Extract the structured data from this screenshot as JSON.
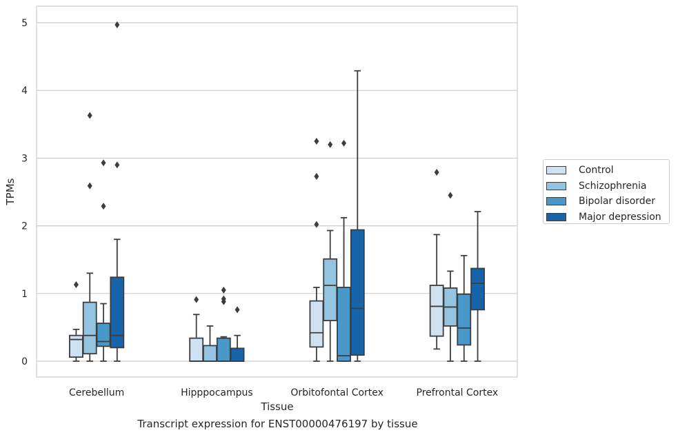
{
  "caption": "Transcript expression for ENST00000476197 by tissue",
  "chart_data": {
    "type": "boxplot",
    "xlabel": "Tissue",
    "ylabel": "TPMs",
    "ylim": [
      -0.25,
      5.25
    ],
    "yticks": [
      0,
      1,
      2,
      3,
      4,
      5
    ],
    "grid": "horizontal",
    "legend_position": "right",
    "categories": [
      "Cerebellum",
      "Hipppocampus",
      "Orbitofontal Cortex",
      "Prefrontal Cortex"
    ],
    "series": [
      {
        "name": "Control",
        "color": "#d0e1f2",
        "boxes": [
          {
            "whislo": 0.0,
            "q1": 0.06,
            "med": 0.32,
            "q3": 0.38,
            "whishi": 0.47,
            "fliers": [
              1.13
            ]
          },
          {
            "whislo": 0.0,
            "q1": 0.0,
            "med": 0.0,
            "q3": 0.34,
            "whishi": 0.69,
            "fliers": [
              0.91
            ]
          },
          {
            "whislo": 0.0,
            "q1": 0.21,
            "med": 0.42,
            "q3": 0.89,
            "whishi": 1.09,
            "fliers": [
              2.02,
              2.73,
              3.25
            ]
          },
          {
            "whislo": 0.18,
            "q1": 0.37,
            "med": 0.81,
            "q3": 1.12,
            "whishi": 1.87,
            "fliers": [
              2.79
            ]
          }
        ]
      },
      {
        "name": "Schizophrenia",
        "color": "#94c4df",
        "boxes": [
          {
            "whislo": 0.0,
            "q1": 0.11,
            "med": 0.38,
            "q3": 0.87,
            "whishi": 1.3,
            "fliers": [
              2.59,
              3.63
            ]
          },
          {
            "whislo": 0.0,
            "q1": 0.0,
            "med": 0.0,
            "q3": 0.23,
            "whishi": 0.52,
            "fliers": []
          },
          {
            "whislo": 0.0,
            "q1": 0.6,
            "med": 1.12,
            "q3": 1.51,
            "whishi": 1.93,
            "fliers": [
              3.2
            ]
          },
          {
            "whislo": 0.0,
            "q1": 0.52,
            "med": 0.8,
            "q3": 1.08,
            "whishi": 1.33,
            "fliers": [
              2.45
            ]
          }
        ]
      },
      {
        "name": "Bipolar disorder",
        "color": "#4a98c9",
        "boxes": [
          {
            "whislo": 0.0,
            "q1": 0.22,
            "med": 0.29,
            "q3": 0.56,
            "whishi": 0.85,
            "fliers": [
              2.29,
              2.93
            ]
          },
          {
            "whislo": 0.0,
            "q1": 0.0,
            "med": 0.0,
            "q3": 0.34,
            "whishi": 0.36,
            "fliers": [
              0.88,
              0.92,
              1.05
            ]
          },
          {
            "whislo": 0.0,
            "q1": 0.0,
            "med": 0.08,
            "q3": 1.09,
            "whishi": 2.12,
            "fliers": [
              3.22
            ]
          },
          {
            "whislo": 0.0,
            "q1": 0.24,
            "med": 0.49,
            "q3": 0.99,
            "whishi": 1.56,
            "fliers": []
          }
        ]
      },
      {
        "name": "Major depression",
        "color": "#1764ab",
        "boxes": [
          {
            "whislo": 0.0,
            "q1": 0.2,
            "med": 0.38,
            "q3": 1.24,
            "whishi": 1.8,
            "fliers": [
              2.9,
              4.97
            ]
          },
          {
            "whislo": 0.0,
            "q1": 0.0,
            "med": 0.0,
            "q3": 0.19,
            "whishi": 0.38,
            "fliers": [
              0.76
            ]
          },
          {
            "whislo": 0.0,
            "q1": 0.09,
            "med": 0.78,
            "q3": 1.94,
            "whishi": 4.29,
            "fliers": []
          },
          {
            "whislo": 0.0,
            "q1": 0.76,
            "med": 1.15,
            "q3": 1.37,
            "whishi": 2.21,
            "fliers": []
          }
        ]
      }
    ]
  }
}
